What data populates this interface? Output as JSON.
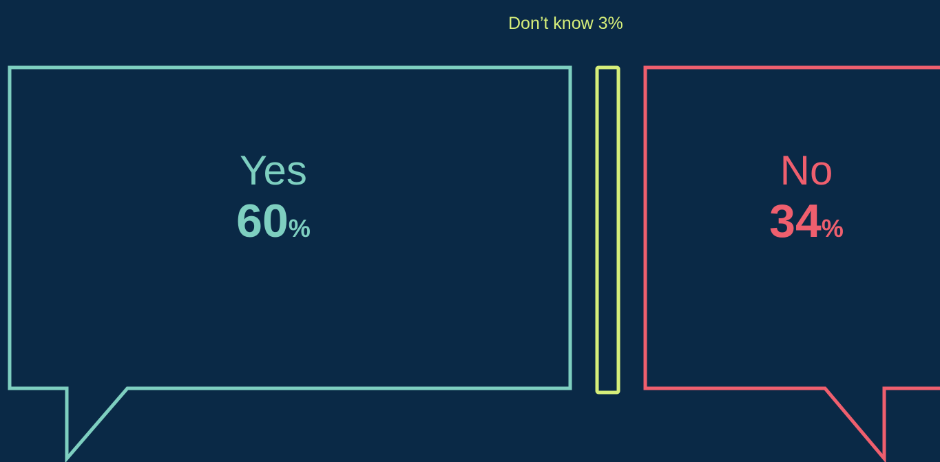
{
  "chart_data": {
    "type": "bar",
    "title": "",
    "xlabel": "",
    "ylabel": "",
    "ylim": [
      0,
      100
    ],
    "categories": [
      "Yes",
      "Don’t know",
      "No"
    ],
    "values": [
      60,
      3,
      34
    ],
    "unit": "%",
    "value_display": {
      "yes": "60",
      "no": "34",
      "dont_know": "Don’t know 3%"
    },
    "colors": {
      "background": "#0a2946",
      "yes": "#7ecfc0",
      "no": "#ef5f6e",
      "dont_know": "#d6ee7a"
    }
  }
}
